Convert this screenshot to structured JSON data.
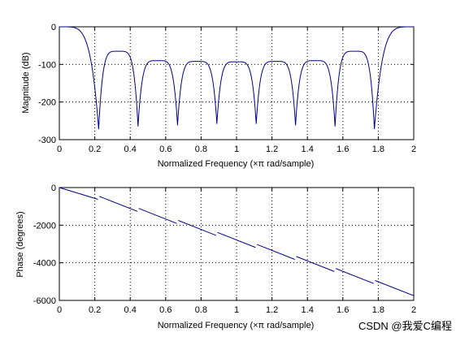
{
  "watermark": "CSDN @我爱C编程",
  "chart_data": [
    {
      "type": "line",
      "panel": "magnitude",
      "xlabel": "Normalized Frequency  (×π rad/sample)",
      "ylabel": "Magnitude (dB)",
      "xlim": [
        0,
        2
      ],
      "ylim": [
        -300,
        0
      ],
      "xticks": [
        "0",
        "0.2",
        "0.4",
        "0.6",
        "0.8",
        "1",
        "1.2",
        "1.4",
        "1.6",
        "1.8",
        "2"
      ],
      "yticks": [
        "0",
        "-100",
        "-200",
        "-300"
      ],
      "grid": true,
      "color": "#00008b",
      "nulls": [
        {
          "x": 0.222,
          "y": -272
        },
        {
          "x": 0.444,
          "y": -265
        },
        {
          "x": 0.667,
          "y": -262
        },
        {
          "x": 0.889,
          "y": -258
        },
        {
          "x": 1.111,
          "y": -258
        },
        {
          "x": 1.333,
          "y": -262
        },
        {
          "x": 1.556,
          "y": -265
        },
        {
          "x": 1.778,
          "y": -272
        }
      ],
      "peaks": [
        {
          "x": 0.0,
          "y": 0
        },
        {
          "x": 0.333,
          "y": -65
        },
        {
          "x": 0.556,
          "y": -90
        },
        {
          "x": 0.778,
          "y": -92
        },
        {
          "x": 1.0,
          "y": -93
        },
        {
          "x": 1.222,
          "y": -92
        },
        {
          "x": 1.444,
          "y": -90
        },
        {
          "x": 1.667,
          "y": -65
        },
        {
          "x": 2.0,
          "y": 0
        }
      ]
    },
    {
      "type": "line",
      "panel": "phase",
      "xlabel": "Normalized Frequency  (×π rad/sample)",
      "ylabel": "Phase (degrees)",
      "xlim": [
        0,
        2
      ],
      "ylim": [
        -6000,
        0
      ],
      "xticks": [
        "0",
        "0.2",
        "0.4",
        "0.6",
        "0.8",
        "1",
        "1.2",
        "1.4",
        "1.6",
        "1.8",
        "2"
      ],
      "yticks": [
        "0",
        "-2000",
        "-4000",
        "-6000"
      ],
      "grid": true,
      "color": "#00008b",
      "start": {
        "x": 0,
        "y": 0
      },
      "end": {
        "x": 2,
        "y": -5750
      },
      "jumps_at": [
        0.222,
        0.444,
        0.667,
        0.889,
        1.111,
        1.333,
        1.556,
        1.778
      ]
    }
  ]
}
